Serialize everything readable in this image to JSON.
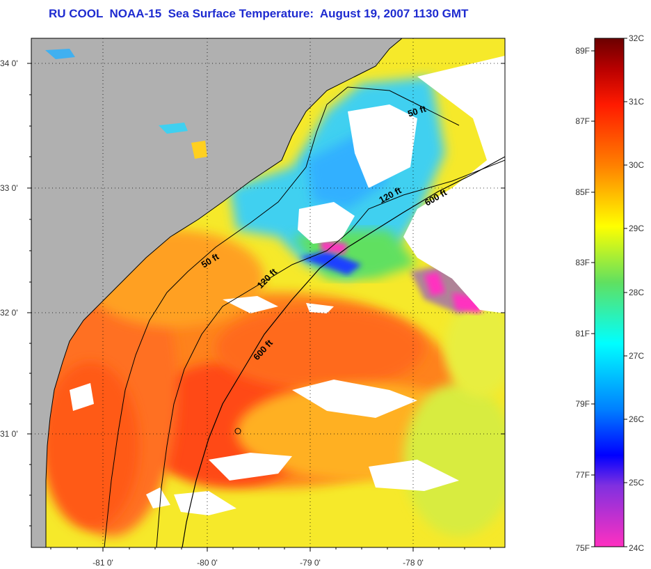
{
  "title": "RU COOL  NOAA-15  Sea Surface Temperature:  August 19, 2007 1130 GMT",
  "lat_labels": [
    "34 0'",
    "33 0'",
    "32 0'",
    "31 0'"
  ],
  "lon_labels": [
    "-81 0'",
    "-80 0'",
    "-79 0'",
    "-78 0'"
  ],
  "isobaths": [
    "50 ft",
    "120 ft",
    "600 ft"
  ],
  "colorbar": {
    "celsius": [
      "32C",
      "31C",
      "30C",
      "29C",
      "28C",
      "27C",
      "26C",
      "25C",
      "24C"
    ],
    "fahrenheit": [
      "89F",
      "87F",
      "85F",
      "83F",
      "81F",
      "79F",
      "77F",
      "75F"
    ]
  },
  "colors": {
    "land": "#b0b0b0",
    "cloud": "#ffffff",
    "title": "#1e2bd0",
    "warm": "#ff5a14",
    "cool": "#3ad0ff"
  }
}
